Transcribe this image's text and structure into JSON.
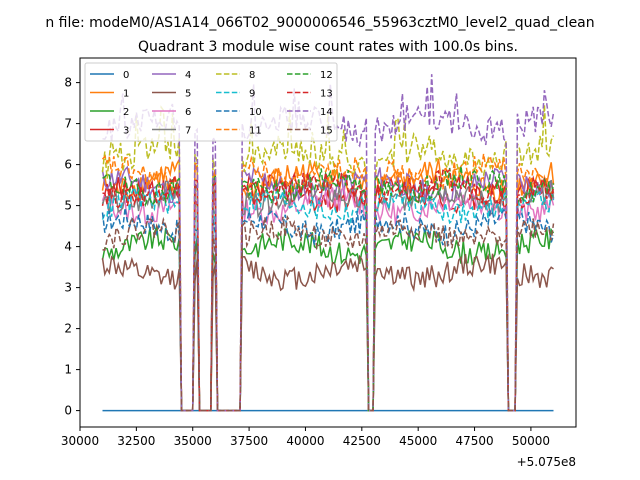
{
  "suptitle": "n file: modeM0/AS1A14_066T02_9000006546_55963cztM0_level2_quad_clean",
  "chart_data": {
    "type": "line",
    "title": "Quadrant 3 module wise count rates with 100.0s bins.",
    "xlabel": "",
    "ylabel": "",
    "x_offset_label": "+5.075e8",
    "xlim": [
      30000,
      52000
    ],
    "ylim": [
      -0.4,
      8.6
    ],
    "xticks": [
      30000,
      32500,
      35000,
      37500,
      40000,
      42500,
      45000,
      47500,
      50000
    ],
    "yticks": [
      0,
      1,
      2,
      3,
      4,
      5,
      6,
      7,
      8
    ],
    "x_range": [
      31000,
      51000
    ],
    "bin_size_s": 100,
    "gaps": [
      [
        34500,
        35000
      ],
      [
        35250,
        35800
      ],
      [
        36100,
        37150
      ],
      [
        42800,
        43050
      ],
      [
        49000,
        49350
      ]
    ],
    "gap_bump_peaks": [
      [
        35150,
        0.75
      ],
      [
        35950,
        5.85
      ]
    ],
    "grid": false,
    "legend": {
      "placement": "top-left",
      "columns": 4
    },
    "series": [
      {
        "name": "0",
        "color": "#1f77b4",
        "style": "solid",
        "level": 0.0,
        "amp": 0.0
      },
      {
        "name": "1",
        "color": "#ff7f0e",
        "style": "solid",
        "level": 5.6,
        "amp": 0.35
      },
      {
        "name": "2",
        "color": "#2ca02c",
        "style": "solid",
        "level": 4.0,
        "amp": 0.3
      },
      {
        "name": "3",
        "color": "#d62728",
        "style": "solid",
        "level": 5.3,
        "amp": 0.3
      },
      {
        "name": "4",
        "color": "#9467bd",
        "style": "solid",
        "level": 5.5,
        "amp": 0.3
      },
      {
        "name": "5",
        "color": "#8c564b",
        "style": "solid",
        "level": 3.4,
        "amp": 0.3
      },
      {
        "name": "6",
        "color": "#e377c2",
        "style": "solid",
        "level": 5.0,
        "amp": 0.3
      },
      {
        "name": "7",
        "color": "#7f7f7f",
        "style": "solid",
        "level": 5.2,
        "amp": 0.3
      },
      {
        "name": "8",
        "color": "#bcbd22",
        "style": "dashed",
        "level": 6.2,
        "amp": 0.35
      },
      {
        "name": "9",
        "color": "#17becf",
        "style": "dashed",
        "level": 5.0,
        "amp": 0.3
      },
      {
        "name": "10",
        "color": "#1f77b4",
        "style": "dashed",
        "level": 4.5,
        "amp": 0.3
      },
      {
        "name": "11",
        "color": "#ff7f0e",
        "style": "dashed",
        "level": 5.8,
        "amp": 0.3
      },
      {
        "name": "12",
        "color": "#2ca02c",
        "style": "dashed",
        "level": 5.5,
        "amp": 0.3
      },
      {
        "name": "13",
        "color": "#d62728",
        "style": "dashed",
        "level": 5.4,
        "amp": 0.3
      },
      {
        "name": "14",
        "color": "#9467bd",
        "style": "dashed",
        "level": 7.0,
        "amp": 0.35
      },
      {
        "name": "15",
        "color": "#8c564b",
        "style": "dashed",
        "level": 4.3,
        "amp": 0.3
      }
    ]
  }
}
